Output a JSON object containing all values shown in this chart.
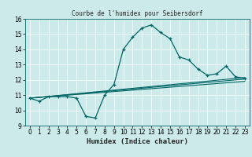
{
  "title": "Courbe de l'humidex pour Seibersdorf",
  "xlabel": "Humidex (Indice chaleur)",
  "ylabel": "",
  "bg_color": "#cceaea",
  "line_color": "#006666",
  "xlim": [
    -0.5,
    23.5
  ],
  "ylim": [
    9,
    16
  ],
  "yticks": [
    9,
    10,
    11,
    12,
    13,
    14,
    15,
    16
  ],
  "xticks": [
    0,
    1,
    2,
    3,
    4,
    5,
    6,
    7,
    8,
    9,
    10,
    11,
    12,
    13,
    14,
    15,
    16,
    17,
    18,
    19,
    20,
    21,
    22,
    23
  ],
  "main_line_x": [
    0,
    1,
    2,
    3,
    4,
    5,
    6,
    7,
    8,
    9,
    10,
    11,
    12,
    13,
    14,
    15,
    16,
    17,
    18,
    19,
    20,
    21,
    22,
    23
  ],
  "main_line_y": [
    10.8,
    10.6,
    10.9,
    10.9,
    10.9,
    10.8,
    9.6,
    9.5,
    11.0,
    11.7,
    14.0,
    14.8,
    15.4,
    15.6,
    15.1,
    14.7,
    13.5,
    13.3,
    12.7,
    12.3,
    12.4,
    12.9,
    12.2,
    12.1
  ],
  "line2_x": [
    0,
    23
  ],
  "line2_y": [
    10.8,
    12.15
  ],
  "line3_x": [
    0,
    23
  ],
  "line3_y": [
    10.8,
    12.05
  ],
  "line4_x": [
    0,
    23
  ],
  "line4_y": [
    10.8,
    11.9
  ]
}
